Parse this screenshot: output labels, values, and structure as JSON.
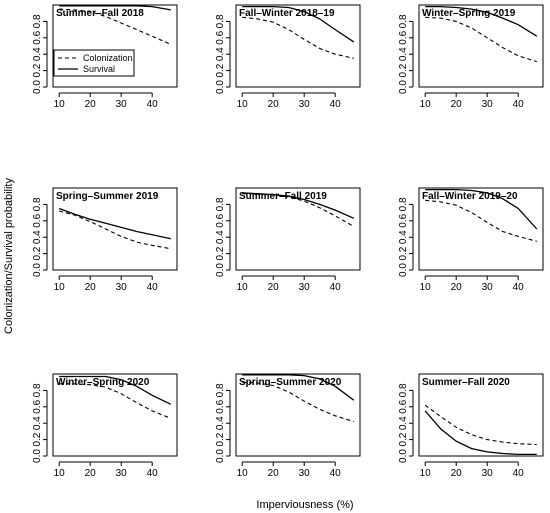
{
  "figure": {
    "ylabel": "Colonization/Survival probability",
    "xlabel": "Imperviousness (%)"
  },
  "chart_data": [
    {
      "type": "line",
      "title": "Summer–Fall 2018",
      "xlim": [
        8,
        48
      ],
      "ylim": [
        0,
        1
      ],
      "x_ticks": [
        10,
        20,
        30,
        40
      ],
      "y_ticks": [
        0.0,
        0.2,
        0.4,
        0.6,
        0.8
      ],
      "grid": false,
      "legend": {
        "placement": "bottom-left",
        "entries": [
          {
            "label": "Colonization",
            "style": "dashed"
          },
          {
            "label": "Survival",
            "style": "solid"
          }
        ]
      },
      "series": [
        {
          "style": "dashed",
          "x": [
            10,
            15,
            20,
            25,
            30,
            35,
            40,
            46
          ],
          "values": [
            0.95,
            0.94,
            0.92,
            0.86,
            0.78,
            0.7,
            0.62,
            0.52
          ]
        },
        {
          "style": "solid",
          "x": [
            10,
            15,
            20,
            25,
            30,
            35,
            40,
            46
          ],
          "values": [
            0.99,
            0.99,
            0.99,
            0.99,
            0.99,
            0.99,
            0.98,
            0.94
          ]
        }
      ]
    },
    {
      "type": "line",
      "title": "Fall–Winter 2018–19",
      "xlim": [
        8,
        48
      ],
      "ylim": [
        0,
        1
      ],
      "x_ticks": [
        10,
        20,
        30,
        40
      ],
      "y_ticks": [
        0.0,
        0.2,
        0.4,
        0.6,
        0.8
      ],
      "grid": false,
      "series": [
        {
          "style": "dashed",
          "x": [
            10,
            15,
            20,
            25,
            30,
            35,
            40,
            46
          ],
          "values": [
            0.85,
            0.83,
            0.79,
            0.7,
            0.58,
            0.47,
            0.4,
            0.35
          ]
        },
        {
          "style": "solid",
          "x": [
            10,
            15,
            20,
            25,
            30,
            35,
            40,
            46
          ],
          "values": [
            0.98,
            0.98,
            0.98,
            0.97,
            0.92,
            0.83,
            0.7,
            0.55
          ]
        }
      ]
    },
    {
      "type": "line",
      "title": "Winter–Spring 2019",
      "xlim": [
        8,
        48
      ],
      "ylim": [
        0,
        1
      ],
      "x_ticks": [
        10,
        20,
        30,
        40
      ],
      "y_ticks": [
        0.0,
        0.2,
        0.4,
        0.6,
        0.8
      ],
      "grid": false,
      "series": [
        {
          "style": "dashed",
          "x": [
            10,
            15,
            20,
            25,
            30,
            35,
            40,
            46
          ],
          "values": [
            0.85,
            0.84,
            0.8,
            0.72,
            0.6,
            0.48,
            0.38,
            0.31
          ]
        },
        {
          "style": "solid",
          "x": [
            10,
            15,
            20,
            25,
            30,
            35,
            40,
            46
          ],
          "values": [
            0.98,
            0.98,
            0.97,
            0.95,
            0.91,
            0.84,
            0.76,
            0.62
          ]
        }
      ]
    },
    {
      "type": "line",
      "title": "Spring–Summer 2019",
      "xlim": [
        8,
        48
      ],
      "ylim": [
        0,
        1
      ],
      "x_ticks": [
        10,
        20,
        30,
        40
      ],
      "y_ticks": [
        0.0,
        0.2,
        0.4,
        0.6,
        0.8
      ],
      "grid": false,
      "series": [
        {
          "style": "dashed",
          "x": [
            10,
            15,
            20,
            25,
            30,
            35,
            40,
            46
          ],
          "values": [
            0.72,
            0.67,
            0.59,
            0.5,
            0.41,
            0.34,
            0.3,
            0.26
          ]
        },
        {
          "style": "solid",
          "x": [
            10,
            15,
            20,
            25,
            30,
            35,
            40,
            46
          ],
          "values": [
            0.75,
            0.68,
            0.62,
            0.57,
            0.52,
            0.47,
            0.43,
            0.38
          ]
        }
      ]
    },
    {
      "type": "line",
      "title": "Summer–Fall 2019",
      "xlim": [
        8,
        48
      ],
      "ylim": [
        0,
        1
      ],
      "x_ticks": [
        10,
        20,
        30,
        40
      ],
      "y_ticks": [
        0.0,
        0.2,
        0.4,
        0.6,
        0.8
      ],
      "grid": false,
      "series": [
        {
          "style": "dashed",
          "x": [
            10,
            15,
            20,
            25,
            30,
            35,
            40,
            46
          ],
          "values": [
            0.93,
            0.93,
            0.92,
            0.89,
            0.84,
            0.76,
            0.66,
            0.53
          ]
        },
        {
          "style": "solid",
          "x": [
            10,
            15,
            20,
            25,
            30,
            35,
            40,
            46
          ],
          "values": [
            0.94,
            0.93,
            0.92,
            0.9,
            0.86,
            0.8,
            0.73,
            0.63
          ]
        }
      ]
    },
    {
      "type": "line",
      "title": "Fall–Winter 2019–20",
      "xlim": [
        8,
        48
      ],
      "ylim": [
        0,
        1
      ],
      "x_ticks": [
        10,
        20,
        30,
        40
      ],
      "y_ticks": [
        0.0,
        0.2,
        0.4,
        0.6,
        0.8
      ],
      "grid": false,
      "series": [
        {
          "style": "dashed",
          "x": [
            10,
            15,
            20,
            25,
            30,
            35,
            40,
            46
          ],
          "values": [
            0.85,
            0.83,
            0.79,
            0.7,
            0.58,
            0.47,
            0.41,
            0.35
          ]
        },
        {
          "style": "solid",
          "x": [
            10,
            15,
            20,
            25,
            30,
            35,
            40,
            46
          ],
          "values": [
            0.98,
            0.98,
            0.98,
            0.97,
            0.94,
            0.87,
            0.75,
            0.5
          ]
        }
      ]
    },
    {
      "type": "line",
      "title": "Winter–Spring 2020",
      "xlim": [
        8,
        48
      ],
      "ylim": [
        0,
        1
      ],
      "x_ticks": [
        10,
        20,
        30,
        40
      ],
      "y_ticks": [
        0.0,
        0.2,
        0.4,
        0.6,
        0.8
      ],
      "grid": false,
      "series": [
        {
          "style": "dashed",
          "x": [
            10,
            15,
            20,
            25,
            30,
            35,
            40,
            46
          ],
          "values": [
            0.88,
            0.88,
            0.87,
            0.84,
            0.76,
            0.65,
            0.55,
            0.46
          ]
        },
        {
          "style": "solid",
          "x": [
            10,
            15,
            20,
            25,
            30,
            35,
            40,
            46
          ],
          "values": [
            0.97,
            0.97,
            0.97,
            0.97,
            0.93,
            0.85,
            0.74,
            0.63
          ]
        }
      ]
    },
    {
      "type": "line",
      "title": "Spring–Summer 2020",
      "xlim": [
        8,
        48
      ],
      "ylim": [
        0,
        1
      ],
      "x_ticks": [
        10,
        20,
        30,
        40
      ],
      "y_ticks": [
        0.0,
        0.2,
        0.4,
        0.6,
        0.8
      ],
      "grid": false,
      "series": [
        {
          "style": "dashed",
          "x": [
            10,
            15,
            20,
            25,
            30,
            35,
            40,
            46
          ],
          "values": [
            0.9,
            0.89,
            0.86,
            0.78,
            0.67,
            0.57,
            0.49,
            0.42
          ]
        },
        {
          "style": "solid",
          "x": [
            10,
            15,
            20,
            25,
            30,
            35,
            40,
            46
          ],
          "values": [
            0.99,
            0.99,
            0.99,
            0.99,
            0.98,
            0.94,
            0.85,
            0.68
          ]
        }
      ]
    },
    {
      "type": "line",
      "title": "Summer–Fall 2020",
      "xlim": [
        8,
        48
      ],
      "ylim": [
        0,
        1
      ],
      "x_ticks": [
        10,
        20,
        30,
        40
      ],
      "y_ticks": [
        0.0,
        0.2,
        0.4,
        0.6,
        0.8
      ],
      "grid": false,
      "series": [
        {
          "style": "dashed",
          "x": [
            10,
            15,
            20,
            25,
            30,
            35,
            40,
            46
          ],
          "values": [
            0.62,
            0.48,
            0.35,
            0.26,
            0.2,
            0.17,
            0.15,
            0.14
          ]
        },
        {
          "style": "solid",
          "x": [
            10,
            15,
            20,
            25,
            30,
            35,
            40,
            46
          ],
          "values": [
            0.55,
            0.33,
            0.18,
            0.09,
            0.05,
            0.03,
            0.02,
            0.02
          ]
        }
      ]
    }
  ]
}
